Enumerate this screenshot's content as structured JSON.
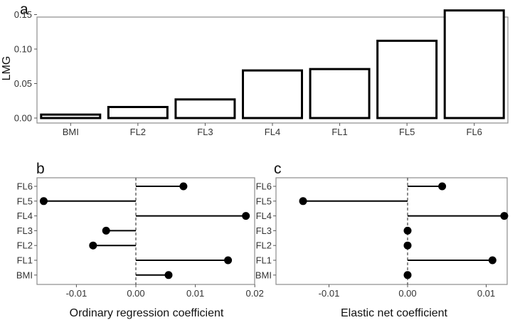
{
  "chart_data": [
    {
      "panel": "a",
      "type": "bar",
      "categories": [
        "BMI",
        "FL2",
        "FL3",
        "FL4",
        "FL1",
        "FL5",
        "FL6"
      ],
      "values": [
        0.005,
        0.016,
        0.027,
        0.069,
        0.071,
        0.112,
        0.156
      ],
      "title": "",
      "xlabel": "",
      "ylabel": "LMG",
      "ylim": [
        0,
        0.16
      ],
      "yticks": [
        0.0,
        0.05,
        0.1,
        0.15
      ],
      "ytick_labels": [
        "0.00",
        "0.05",
        "0.10",
        "0.15"
      ],
      "grid": false,
      "bar_fill": "#ffffff",
      "bar_stroke": "#000000"
    },
    {
      "panel": "b",
      "type": "lollipop",
      "categories": [
        "FL6",
        "FL5",
        "FL4",
        "FL3",
        "FL2",
        "FL1",
        "BMI"
      ],
      "values": [
        0.008,
        -0.0155,
        0.0185,
        -0.005,
        -0.0072,
        0.0155,
        0.0055
      ],
      "xlabel": "Ordinary regression coefficient",
      "ylabel": "",
      "xlim": [
        -0.0165,
        0.02
      ],
      "xticks": [
        -0.01,
        0.0,
        0.01,
        0.02
      ],
      "xtick_labels": [
        "-0.01",
        "0.00",
        "0.01",
        "0.02"
      ],
      "zero_line": "dashed",
      "grid": false,
      "point_color": "#000000"
    },
    {
      "panel": "c",
      "type": "lollipop",
      "categories": [
        "FL6",
        "FL5",
        "FL4",
        "FL3",
        "FL2",
        "FL1",
        "BMI"
      ],
      "values": [
        0.0044,
        -0.0133,
        0.0123,
        0.0,
        0.0,
        0.0108,
        0.0
      ],
      "xlabel": "Elastic net coefficient",
      "ylabel": "",
      "xlim": [
        -0.0145,
        0.0135
      ],
      "xticks": [
        -0.01,
        0.0,
        0.01
      ],
      "xtick_labels": [
        "-0.01",
        "0.00",
        "0.01"
      ],
      "zero_line": "dashed",
      "grid": false,
      "point_color": "#000000"
    }
  ]
}
